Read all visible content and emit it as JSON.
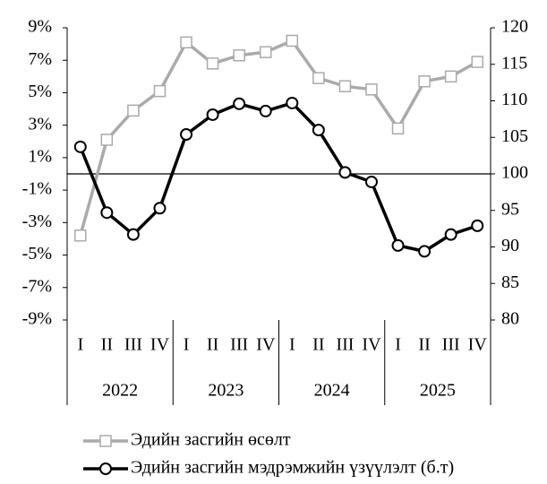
{
  "chart_data": {
    "type": "line",
    "categories": [
      "I",
      "II",
      "III",
      "IV",
      "I",
      "II",
      "III",
      "IV",
      "I",
      "II",
      "III",
      "IV",
      "I",
      "II",
      "III",
      "IV"
    ],
    "groups": [
      "2022",
      "2023",
      "2024",
      "2025"
    ],
    "series": [
      {
        "name": "Эдийн засгийн өсөлт",
        "color": "#aaaaaa",
        "marker": "square",
        "axis": "y",
        "values": [
          -3.8,
          2.1,
          3.9,
          5.1,
          8.1,
          6.8,
          7.3,
          7.5,
          8.2,
          5.9,
          5.4,
          5.2,
          2.8,
          5.7,
          6.0,
          6.9
        ]
      },
      {
        "name": "Эдийн засгийн мэдрэмжийн үзүүлэлт (б.т)",
        "color": "#000000",
        "marker": "circle",
        "axis": "y2",
        "values": [
          103.7,
          94.7,
          91.7,
          95.3,
          105.4,
          108.1,
          109.6,
          108.6,
          109.7,
          106.0,
          100.2,
          98.9,
          90.2,
          89.4,
          91.7,
          92.9
        ]
      }
    ],
    "ylim": [
      -9,
      9
    ],
    "yticks": [
      {
        "value": 9,
        "label": "9%"
      },
      {
        "value": 7,
        "label": "7%"
      },
      {
        "value": 5,
        "label": "5%"
      },
      {
        "value": 3,
        "label": "3%"
      },
      {
        "value": 1,
        "label": "1%"
      },
      {
        "value": -1,
        "label": "-1%"
      },
      {
        "value": -3,
        "label": "-3%"
      },
      {
        "value": -5,
        "label": "-5%"
      },
      {
        "value": -7,
        "label": "-7%"
      },
      {
        "value": -9,
        "label": "-9%"
      }
    ],
    "y2lim": [
      80,
      120
    ],
    "y2ticks": [
      120,
      115,
      110,
      105,
      100,
      95,
      90,
      85,
      80
    ],
    "legend": "bottom"
  }
}
